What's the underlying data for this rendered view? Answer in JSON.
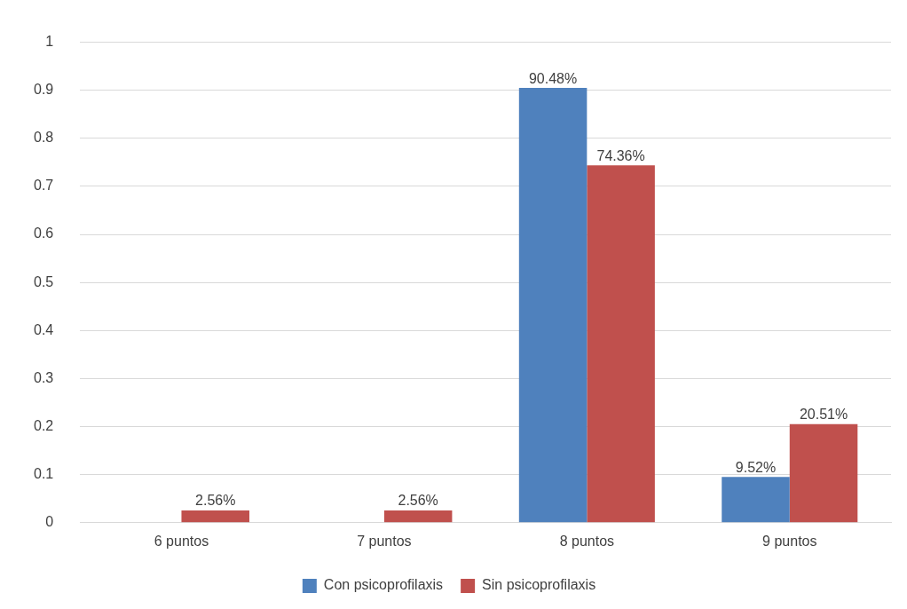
{
  "chart_data": {
    "type": "bar",
    "categories": [
      "6 puntos",
      "7 puntos",
      "8 puntos",
      "9 puntos"
    ],
    "series": [
      {
        "name": "Con psicoprofilaxis",
        "color": "#4f81bd",
        "values": [
          null,
          null,
          0.9048,
          0.0952
        ],
        "value_labels": [
          null,
          null,
          "90.48%",
          "9.52%"
        ]
      },
      {
        "name": "Sin psicoprofilaxis",
        "color": "#c0504d",
        "values": [
          0.0256,
          0.0256,
          0.7436,
          0.2051
        ],
        "value_labels": [
          "2.56%",
          "2.56%",
          "74.36%",
          "20.51%"
        ]
      }
    ],
    "ylim": [
      0,
      1
    ],
    "yticks": [
      0,
      0.1,
      0.2,
      0.3,
      0.4,
      0.5,
      0.6,
      0.7,
      0.8,
      0.9,
      1
    ],
    "grid": "y",
    "legend": "bottom"
  }
}
